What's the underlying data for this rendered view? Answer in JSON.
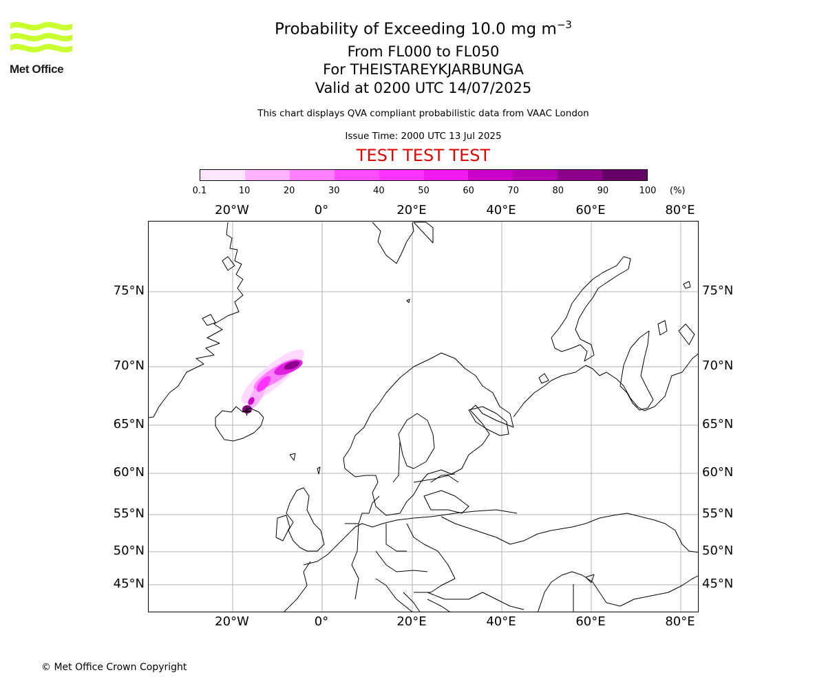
{
  "logo": {
    "text": "Met Office",
    "color": "#c8ff2e"
  },
  "header": {
    "title_prefix": "Probability of Exceeding 10.0 mg m",
    "title_exponent": "−3",
    "flight_levels": "From FL000 to FL050",
    "volcano": "For THEISTAREYKJARBUNGA",
    "valid_time": "Valid at 0200 UTC 14/07/2025",
    "description": "This chart displays QVA compliant probabilistic data from VAAC London",
    "issue_time": "Issue Time: 2000 UTC 13 Jul 2025",
    "test_banner": "TEST TEST TEST"
  },
  "colorbar": {
    "colors": [
      "#ffe6ff",
      "#ffccff",
      "#ffb3ff",
      "#ff80ff",
      "#ff4dff",
      "#ff33ff",
      "#f01af0",
      "#cc00cc",
      "#b300b3",
      "#8c008c",
      "#660066"
    ],
    "ticks": [
      "0.1",
      "10",
      "20",
      "30",
      "40",
      "50",
      "60",
      "70",
      "80",
      "90",
      "100"
    ],
    "unit": "(%)"
  },
  "map": {
    "lon_labels_top": [
      "20°W",
      "0°",
      "20°E",
      "40°E",
      "60°E",
      "80°E"
    ],
    "lon_labels_bottom": [
      "20°W",
      "0°",
      "20°E",
      "40°E",
      "60°E",
      "80°E"
    ],
    "lat_labels_left": [
      "75°N",
      "70°N",
      "65°N",
      "60°N",
      "55°N",
      "50°N",
      "45°N"
    ],
    "lat_labels_right": [
      "75°N",
      "70°N",
      "65°N",
      "60°N",
      "55°N",
      "50°N",
      "45°N"
    ],
    "volcano_marker": "+",
    "coastline_color": "#000000",
    "grid_color": "#b0b0b0"
  },
  "footer": {
    "copyright": "© Met Office Crown Copyright"
  }
}
